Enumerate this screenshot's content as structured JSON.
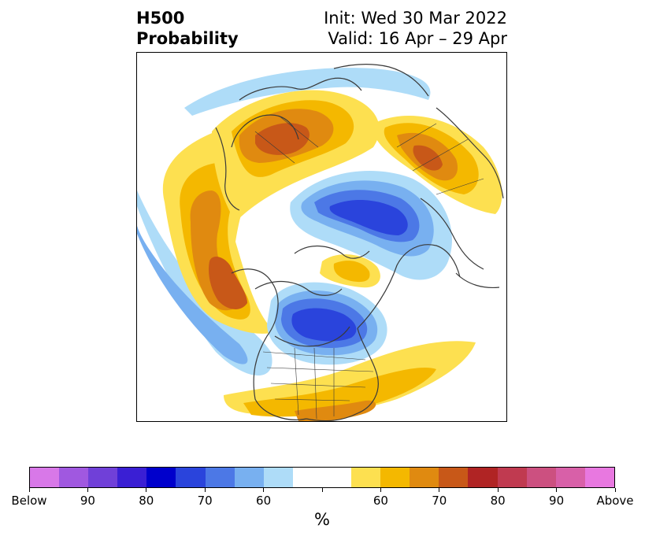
{
  "title": {
    "left_line1": "H500",
    "left_line2": "Probability",
    "right_line1": "Init: Wed 30 Mar 2022",
    "right_line2": "Valid: 16 Apr – 29 Apr"
  },
  "colorbar": {
    "unit": "%",
    "colors": [
      "#d878e8",
      "#a058e0",
      "#7040d8",
      "#3a1fd4",
      "#0000cc",
      "#2a44dc",
      "#4c78e6",
      "#78b0f0",
      "#aedcf8",
      "#ffffff",
      "#ffffff",
      "#fde050",
      "#f4b800",
      "#e08a10",
      "#c85818",
      "#b02424",
      "#c03a50",
      "#cc5080",
      "#d860a8",
      "#e878e0"
    ],
    "tick_labels": [
      "Below",
      "90",
      "80",
      "70",
      "60",
      "",
      "60",
      "70",
      "80",
      "90",
      "Above"
    ]
  },
  "map": {
    "projection": "north-polar-stereographic",
    "palette": {
      "blue_light": "#aedcf8",
      "blue_mid": "#78b0f0",
      "blue_med2": "#4c78e6",
      "blue_deep": "#2a44dc",
      "yellow": "#fde050",
      "gold": "#f4b800",
      "orange": "#e08a10",
      "rust": "#c85818",
      "coast": "#3a3a3a"
    }
  }
}
